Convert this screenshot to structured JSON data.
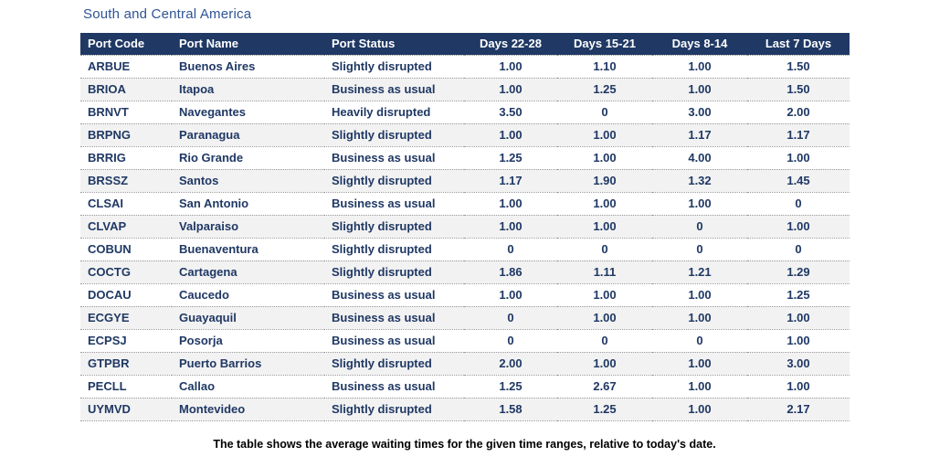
{
  "chart_data": {
    "type": "table",
    "title": "South and Central America",
    "columns": [
      "Port Code",
      "Port Name",
      "Port Status",
      "Days 22-28",
      "Days 15-21",
      "Days 8-14",
      "Last 7 Days"
    ],
    "rows": [
      [
        "ARBUE",
        "Buenos Aires",
        "Slightly disrupted",
        "1.00",
        "1.10",
        "1.00",
        "1.50"
      ],
      [
        "BRIOA",
        "Itapoa",
        "Business as usual",
        "1.00",
        "1.25",
        "1.00",
        "1.50"
      ],
      [
        "BRNVT",
        "Navegantes",
        "Heavily disrupted",
        "3.50",
        "0",
        "3.00",
        "2.00"
      ],
      [
        "BRPNG",
        "Paranagua",
        "Slightly disrupted",
        "1.00",
        "1.00",
        "1.17",
        "1.17"
      ],
      [
        "BRRIG",
        "Rio Grande",
        "Business as usual",
        "1.25",
        "1.00",
        "4.00",
        "1.00"
      ],
      [
        "BRSSZ",
        "Santos",
        "Slightly disrupted",
        "1.17",
        "1.90",
        "1.32",
        "1.45"
      ],
      [
        "CLSAI",
        "San Antonio",
        "Business as usual",
        "1.00",
        "1.00",
        "1.00",
        "0"
      ],
      [
        "CLVAP",
        "Valparaiso",
        "Slightly disrupted",
        "1.00",
        "1.00",
        "0",
        "1.00"
      ],
      [
        "COBUN",
        "Buenaventura",
        "Slightly disrupted",
        "0",
        "0",
        "0",
        "0"
      ],
      [
        "COCTG",
        "Cartagena",
        "Slightly disrupted",
        "1.86",
        "1.11",
        "1.21",
        "1.29"
      ],
      [
        "DOCAU",
        "Caucedo",
        "Business as usual",
        "1.00",
        "1.00",
        "1.00",
        "1.25"
      ],
      [
        "ECGYE",
        "Guayaquil",
        "Business as usual",
        "0",
        "1.00",
        "1.00",
        "1.00"
      ],
      [
        "ECPSJ",
        "Posorja",
        "Business as usual",
        "0",
        "0",
        "0",
        "1.00"
      ],
      [
        "GTPBR",
        "Puerto Barrios",
        "Slightly disrupted",
        "2.00",
        "1.00",
        "1.00",
        "3.00"
      ],
      [
        "PECLL",
        "Callao",
        "Business as usual",
        "1.25",
        "2.67",
        "1.00",
        "1.00"
      ],
      [
        "UYMVD",
        "Montevideo",
        "Slightly disrupted",
        "1.58",
        "1.25",
        "1.00",
        "2.17"
      ]
    ],
    "caption": "The table shows the average waiting times for the given time ranges, relative to today's date.",
    "colors": {
      "header_bg": "#1F3864",
      "header_text": "#FFFFFF",
      "body_text": "#1F3864",
      "row_alt_bg": "#F2F2F2",
      "title_text": "#2F5496",
      "caption_text": "#000000",
      "row_divider": "#9A9A9A"
    },
    "layout": {
      "striped": true,
      "row_divider_style": "dotted",
      "numeric_columns_align": "center",
      "text_columns_align": "left"
    }
  }
}
